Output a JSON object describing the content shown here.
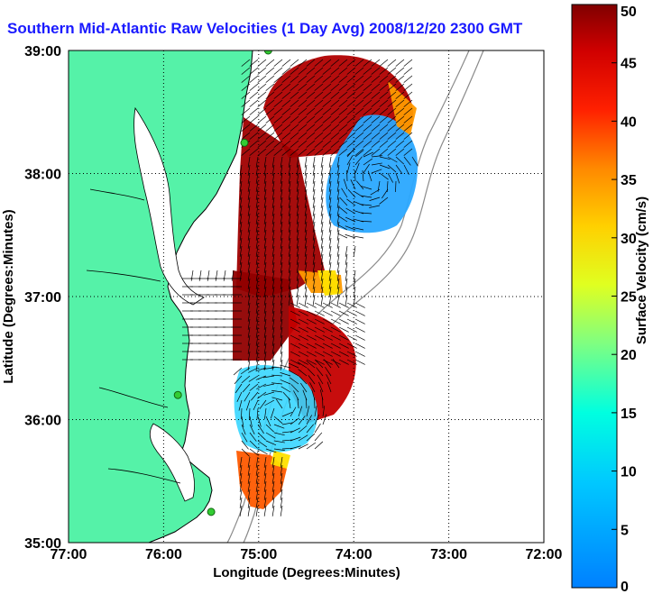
{
  "chart_data": {
    "type": "vector_field_map",
    "title": "Southern Mid-Atlantic Raw Velocities (1 Day Avg) 2008/12/20 2300 GMT",
    "xlabel": "Longitude (Degrees:Minutes)",
    "ylabel": "Latitude (Degrees:Minutes)",
    "xlim": [
      -77,
      -72
    ],
    "ylim": [
      35,
      39
    ],
    "x_ticks": [
      "77:00",
      "76:00",
      "75:00",
      "74:00",
      "73:00",
      "72:00"
    ],
    "y_ticks": [
      "35:00",
      "36:00",
      "37:00",
      "38:00",
      "39:00"
    ],
    "grid": "dotted",
    "colorbar": {
      "label": "Surface Velocity (cm/s)",
      "min": 0,
      "max": 50,
      "ticks": [
        0,
        5,
        10,
        15,
        20,
        25,
        30,
        35,
        40,
        45,
        50
      ],
      "colormap": "jet"
    },
    "colors": {
      "land": "#55f2a8",
      "coast_outline": "#000000",
      "grid": "#000000",
      "isobath": "#8a8a8a",
      "vectors": "#000000",
      "station": "#33cc33",
      "title": "#1a1aff"
    },
    "speed_regions": [
      {
        "region": "northern offshore band near 38:30N",
        "speed_cm_s": 48
      },
      {
        "region": "eastern eddy near 38:05N 73:40W",
        "speed_cm_s": 8
      },
      {
        "region": "shelf south of Chesapeake Bay mouth near 37:00N 75:00W",
        "speed_cm_s": 50
      },
      {
        "region": "offshore jet near 36:30N 74:30W",
        "speed_cm_s": 50
      },
      {
        "region": "southern eddy near 36:00N 74:50W",
        "speed_cm_s": 12
      },
      {
        "region": "southern tip near 35:20N 75:00W",
        "speed_cm_s": 38
      }
    ],
    "vector_regions": [
      {
        "region": "northern band",
        "direction": "southwest"
      },
      {
        "region": "central shelf",
        "direction": "south"
      },
      {
        "region": "nearshore 36:45N-37:15N",
        "direction": "west"
      },
      {
        "region": "offshore jet",
        "direction": "southeast"
      },
      {
        "region": "southern eddy",
        "direction": "cyclonic"
      }
    ],
    "stations": [
      {
        "lon": -74.9,
        "lat": 39.0
      },
      {
        "lon": -75.15,
        "lat": 38.25
      },
      {
        "lon": -75.85,
        "lat": 36.2
      },
      {
        "lon": -75.5,
        "lat": 35.25
      }
    ]
  }
}
